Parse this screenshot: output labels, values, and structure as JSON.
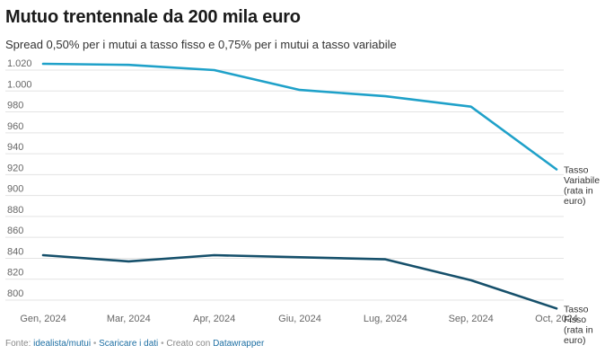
{
  "chart_data": {
    "type": "line",
    "title": "Mutuo trentennale da 200 mila euro",
    "subtitle": "Spread 0,50% per i mutui a tasso fisso e 0,75% per i mutui a tasso variabile",
    "categories": [
      "Gen, 2024",
      "Mar, 2024",
      "Apr, 2024",
      "Giu, 2024",
      "Lug, 2024",
      "Sep, 2024",
      "Oct, 2024"
    ],
    "y_ticks": [
      "800",
      "820",
      "840",
      "860",
      "880",
      "900",
      "920",
      "940",
      "960",
      "980",
      "1.000",
      "1.020"
    ],
    "ylim": [
      800,
      1020
    ],
    "grid": true,
    "series": [
      {
        "name": "Tasso Variabile (rata in euro)",
        "label_lines": [
          "Tasso",
          "Variabile",
          "(rata in",
          "euro)"
        ],
        "color": "#1fa1c9",
        "values": [
          1026,
          1025,
          1020,
          1001,
          995,
          985,
          925
        ]
      },
      {
        "name": "Tasso Fisso (rata in euro)",
        "label_lines": [
          "Tasso",
          "Fisso",
          "(rata in",
          "euro)"
        ],
        "color": "#16506b",
        "values": [
          843,
          837,
          843,
          841,
          839,
          819,
          792
        ]
      }
    ]
  },
  "footer": {
    "prefix": "Fonte:",
    "source_link": "idealista/mutui",
    "separator": "•",
    "download_link": "Scaricare i dati",
    "created_with": "Creato con",
    "tool_link": "Datawrapper"
  },
  "colors": {
    "grid": "#e3e3e3",
    "axis_text": "#666666",
    "link": "#1d6fa3"
  }
}
